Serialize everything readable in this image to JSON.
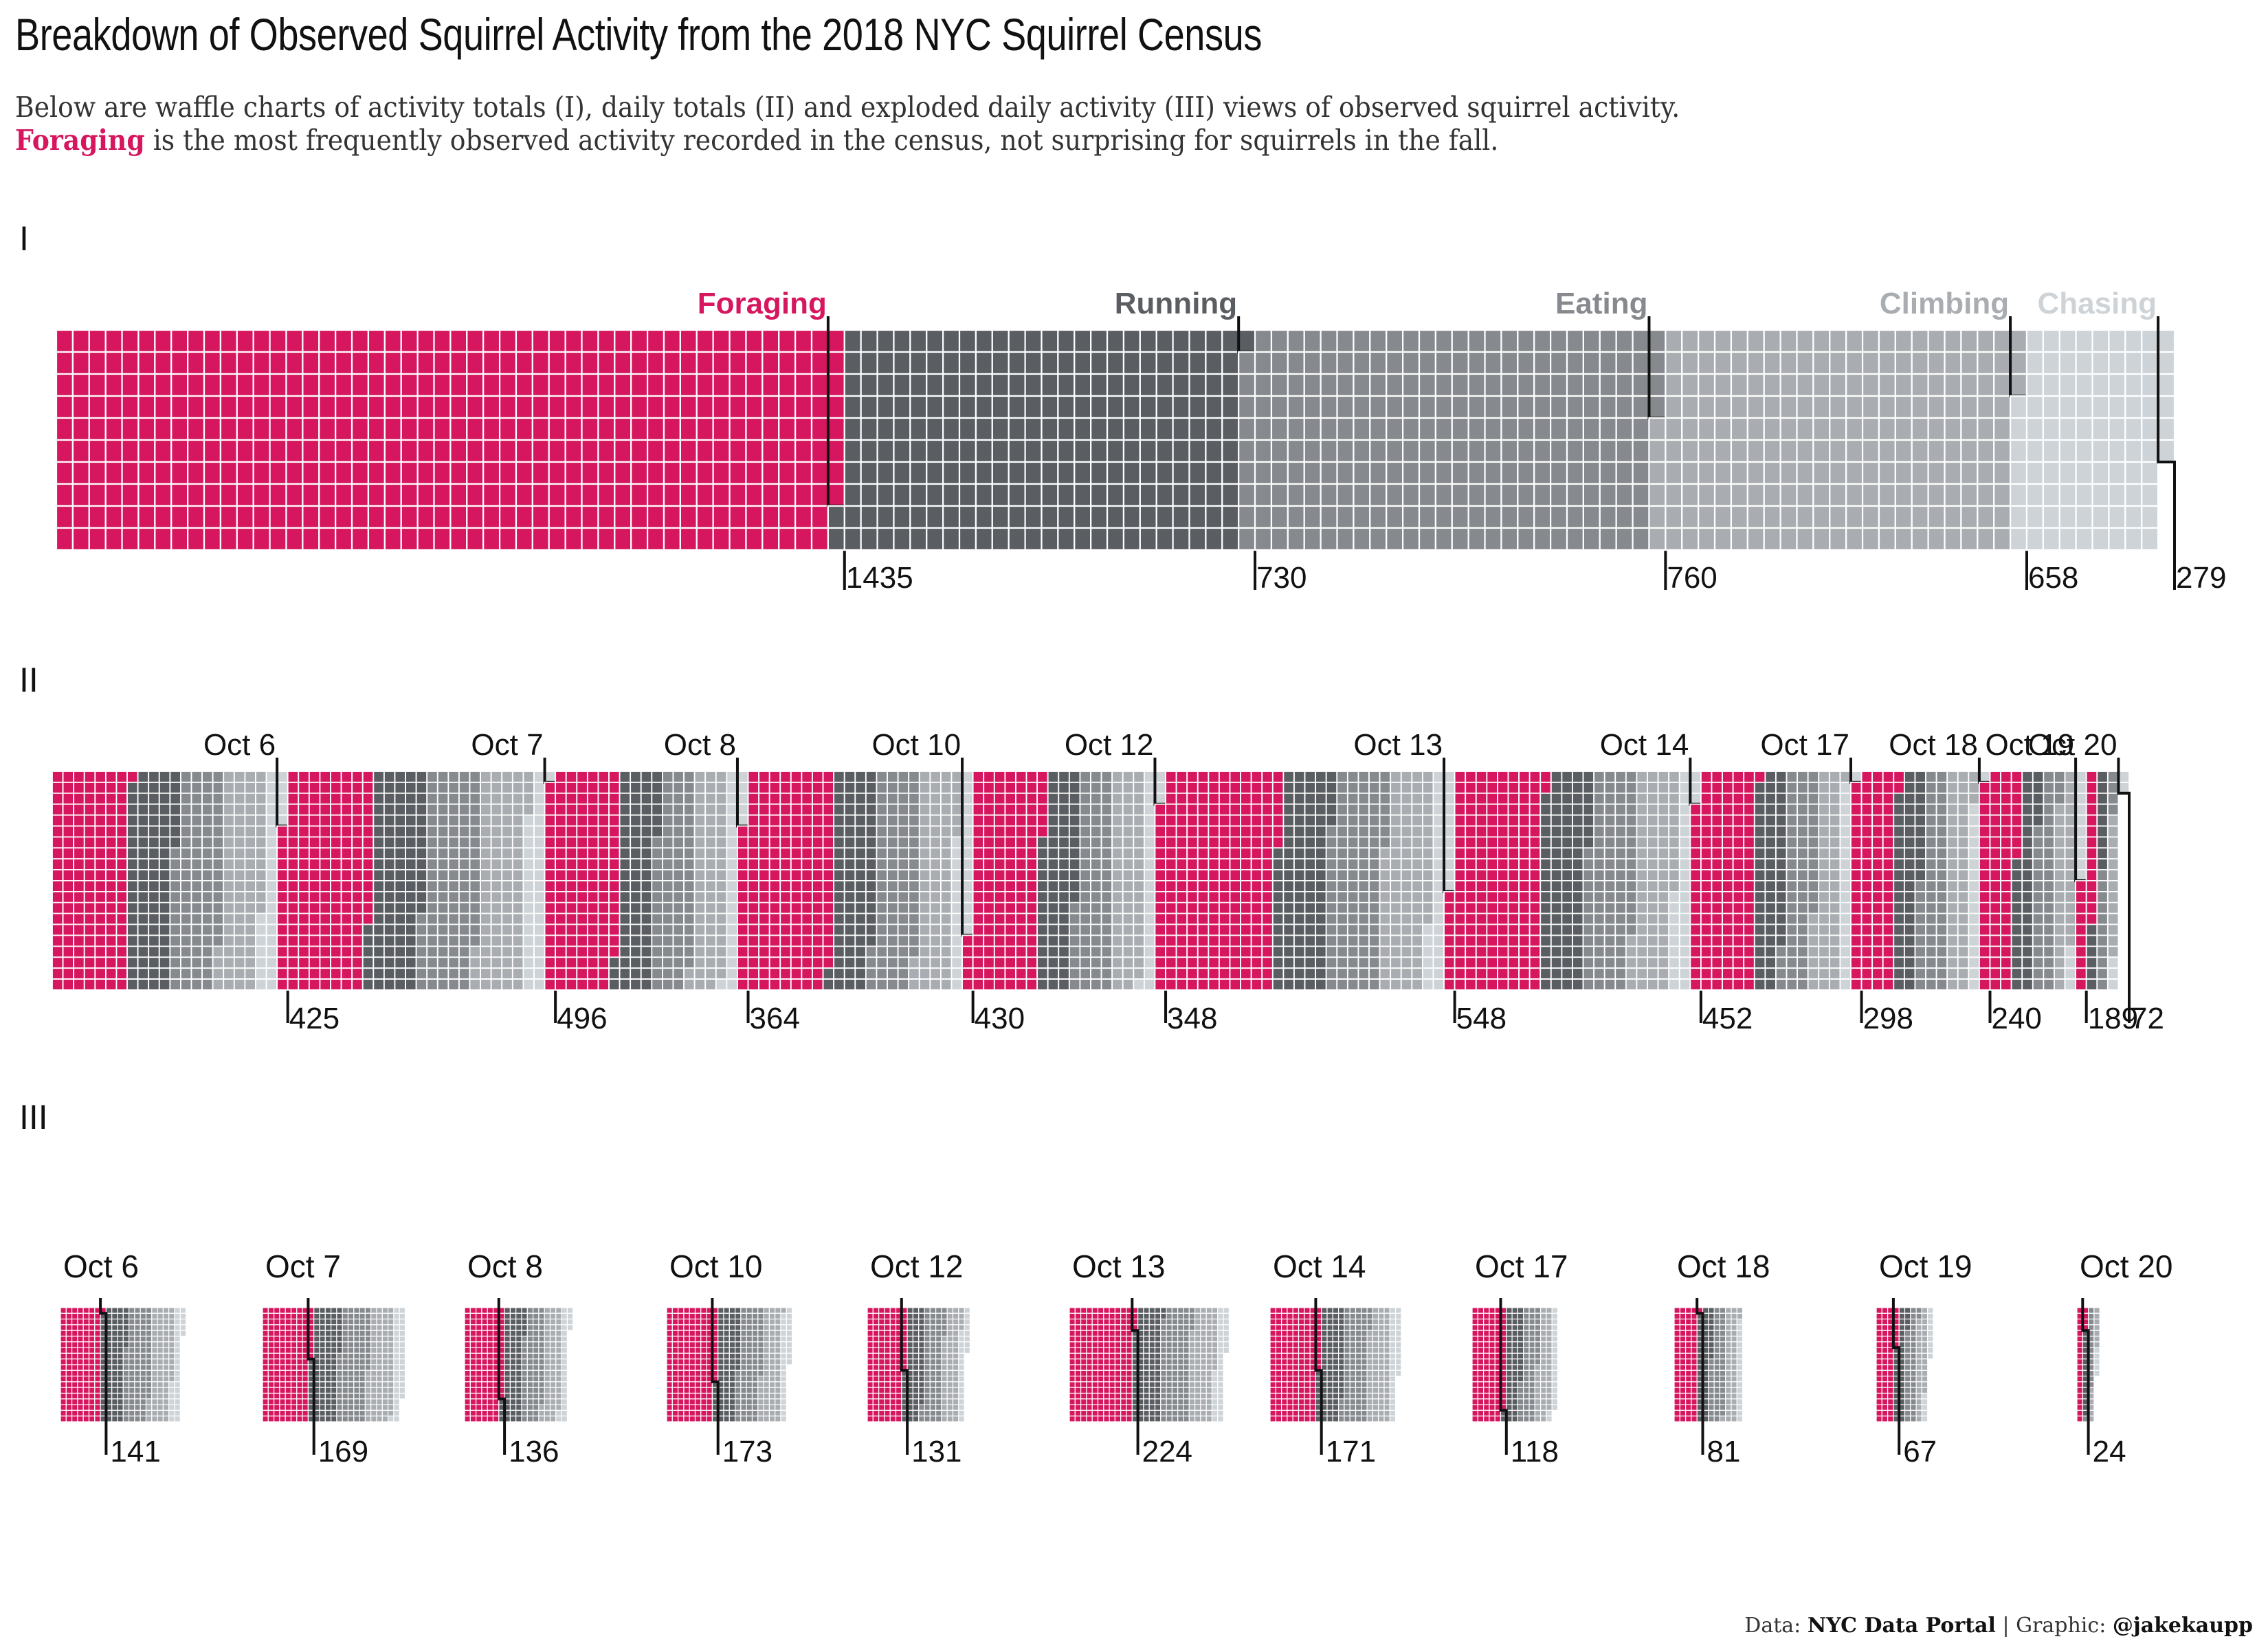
{
  "title": "Breakdown of Observed Squirrel Activity from the 2018 NYC Squirrel Census",
  "subtitle": {
    "line1": "Below are waffle charts of activity totals (I), daily totals (II) and exploded daily activity (III) views of observed squirrel activity.",
    "highlight": "Foraging",
    "line2_rest": " is the most frequently observed activity recorded in the census, not surprising for squirrels in the fall."
  },
  "panels": {
    "p1": "I",
    "p2": "II",
    "p3": "III"
  },
  "caption": {
    "data_label": "Data: ",
    "data_source": "NYC Data Portal",
    "sep": " | Graphic: ",
    "author": "@jakekaupp"
  },
  "colors": {
    "Foraging": "#d6175f",
    "Running": "#5a5e62",
    "Eating": "#868a8e",
    "Climbing": "#a9adb1",
    "Chasing": "#cdd3d7",
    "marker": "#111111"
  },
  "chart_data": [
    {
      "type": "waffle",
      "panel": "I",
      "categories": [
        "Foraging",
        "Running",
        "Eating",
        "Climbing",
        "Chasing"
      ],
      "values": [
        1435,
        730,
        760,
        658,
        279
      ],
      "labels": [
        "Foraging",
        "Running",
        "Eating",
        "Climbing",
        "Chasing"
      ]
    },
    {
      "type": "waffle",
      "panel": "II",
      "categories": [
        "Oct 6",
        "Oct 7",
        "Oct 8",
        "Oct 10",
        "Oct 12",
        "Oct 13",
        "Oct 14",
        "Oct 17",
        "Oct 18",
        "Oct 19",
        "Oct 20"
      ],
      "values": [
        425,
        496,
        364,
        430,
        348,
        548,
        452,
        298,
        240,
        189,
        72
      ],
      "value_labels": [
        "425",
        "496",
        "364",
        "430",
        "348",
        "548",
        "452",
        "298",
        "240",
        "189",
        "72"
      ]
    },
    {
      "type": "waffle",
      "panel": "III",
      "categories": [
        "Oct 6",
        "Oct 7",
        "Oct 8",
        "Oct 10",
        "Oct 12",
        "Oct 13",
        "Oct 14",
        "Oct 17",
        "Oct 18",
        "Oct 19",
        "Oct 20"
      ],
      "foraging_values": [
        141,
        169,
        136,
        173,
        131,
        224,
        171,
        118,
        81,
        67,
        24
      ],
      "totals": [
        425,
        496,
        364,
        430,
        348,
        548,
        452,
        298,
        240,
        189,
        72
      ]
    }
  ]
}
